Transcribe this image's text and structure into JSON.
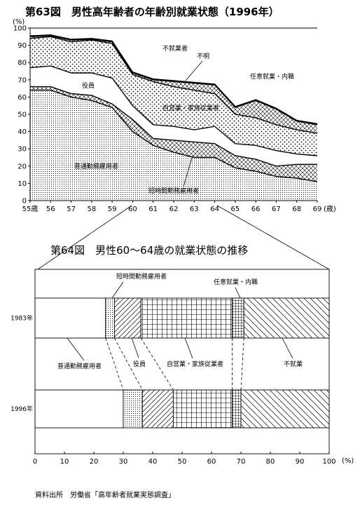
{
  "top_chart": {
    "title": "第63図　男性高年齢者の年齢別就業状態（1996年）",
    "y_unit": "(%)",
    "x_unit": "(歳)",
    "x_first_label": "55歳",
    "chart_data": {
      "type": "area",
      "title": "第63図　男性高年齢者の年齢別就業状態（1996年）",
      "xlabel": "(歳)",
      "ylabel": "(%)",
      "x": [
        55,
        56,
        57,
        58,
        59,
        60,
        61,
        62,
        63,
        64,
        65,
        66,
        67,
        68,
        69
      ],
      "x_tick_labels": [
        "55歳",
        "56",
        "57",
        "58",
        "59",
        "60",
        "61",
        "62",
        "63",
        "64",
        "65",
        "66",
        "67",
        "68",
        "69"
      ],
      "xlim": [
        55,
        69
      ],
      "ylim": [
        0,
        100
      ],
      "y_ticks": [
        0,
        10,
        20,
        30,
        40,
        50,
        60,
        70,
        80,
        90,
        100
      ],
      "stacking": "cumulative",
      "series": [
        {
          "name": "普通勤務雇用者",
          "pattern": "fine-dots",
          "values": [
            64,
            64,
            60,
            58,
            54,
            40,
            32,
            28,
            25,
            25,
            19,
            17,
            14,
            13,
            11
          ]
        },
        {
          "name": "短時間勤務雇用者",
          "pattern": "crosshatch",
          "values": [
            2,
            2,
            2,
            3,
            2,
            7,
            4,
            7,
            9,
            8,
            7,
            7,
            6,
            8,
            10
          ]
        },
        {
          "name": "役員",
          "pattern": "blank",
          "values": [
            11,
            12,
            12,
            13,
            15,
            8,
            8,
            8,
            7,
            10,
            7,
            8,
            9,
            6,
            5
          ]
        },
        {
          "name": "自営業・家族従業者",
          "pattern": "coarse-dots",
          "values": [
            17,
            17,
            18,
            19,
            20,
            18,
            25,
            23,
            23,
            19,
            17,
            16,
            15,
            14,
            13
          ]
        },
        {
          "name": "任意就業・内職",
          "pattern": "crosshatch",
          "values": [
            1,
            0.5,
            1,
            0.5,
            1,
            1,
            1,
            3,
            4,
            5,
            4,
            10,
            9,
            5,
            5
          ]
        },
        {
          "name": "不明",
          "pattern": "blank",
          "values": [
            0.5,
            0.5,
            0.5,
            0.5,
            0.5,
            0.5,
            0.5,
            0.5,
            0.5,
            0.5,
            0.5,
            0.5,
            0.5,
            0.5,
            0.5
          ]
        },
        {
          "name": "不就業者",
          "pattern": "blank",
          "values": [
            4.5,
            4,
            6.5,
            6,
            7.5,
            25.5,
            29.5,
            30.5,
            31.5,
            32.5,
            45.5,
            41.5,
            46.5,
            53.5,
            55.5
          ]
        }
      ],
      "annotations": [
        "不就業者",
        "不明",
        "任意就業・内職",
        "役員",
        "自営業・家族従業者",
        "普通勤務雇用者",
        "短時間勤務雇用者"
      ]
    }
  },
  "bottom_chart": {
    "title": "第64図　男性60～64歳の就業状態の推移",
    "x_unit": "(%)",
    "chart_data": {
      "type": "bar",
      "orientation": "horizontal",
      "stacked": true,
      "title": "第64図　男性60～64歳の就業状態の推移",
      "xlabel": "(%)",
      "xlim": [
        0,
        100
      ],
      "x_ticks": [
        0,
        10,
        20,
        30,
        40,
        50,
        60,
        70,
        80,
        90,
        100
      ],
      "categories": [
        "1983年",
        "1996年"
      ],
      "series": [
        {
          "name": "普通勤務雇用者",
          "pattern": "blank",
          "values": [
            24,
            30
          ]
        },
        {
          "name": "短時間勤務雇用者",
          "pattern": "fine-dots",
          "values": [
            3,
            6.5
          ]
        },
        {
          "name": "役員",
          "pattern": "diagonal",
          "values": [
            9,
            10.5
          ]
        },
        {
          "name": "自営業・家族従業者",
          "pattern": "grid",
          "values": [
            31,
            20
          ]
        },
        {
          "name": "任意就業・内職",
          "pattern": "grid-fine",
          "values": [
            4,
            3
          ]
        },
        {
          "name": "不就業",
          "pattern": "diagonal-wide",
          "values": [
            29,
            30
          ]
        }
      ],
      "labels_above": [
        "短時間勤務雇用者",
        "任意就業・内職"
      ],
      "labels_between": [
        "普通勤務雇用者",
        "役員",
        "自営業・家族従業者",
        "不就業"
      ]
    }
  },
  "source": "資料出所　労働省「高年齢者就業実態調査」"
}
